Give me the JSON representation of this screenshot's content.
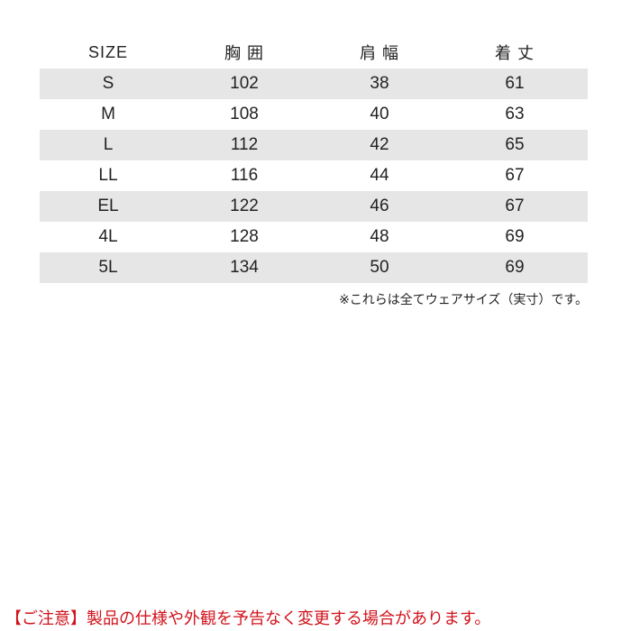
{
  "table": {
    "headers": [
      "SIZE",
      "胸 囲",
      "肩 幅",
      "着 丈"
    ],
    "rows": [
      [
        "S",
        "102",
        "38",
        "61"
      ],
      [
        "M",
        "108",
        "40",
        "63"
      ],
      [
        "L",
        "112",
        "42",
        "65"
      ],
      [
        "LL",
        "116",
        "44",
        "67"
      ],
      [
        "EL",
        "122",
        "46",
        "67"
      ],
      [
        "4L",
        "128",
        "48",
        "69"
      ],
      [
        "5L",
        "134",
        "50",
        "69"
      ]
    ],
    "stripe_color": "#e6e6e6"
  },
  "note": "※これらは全てウェアサイズ（実寸）です。",
  "caution": "【ご注意】製品の仕様や外観を予告なく変更する場合があります。",
  "caution_color": "#d0121b"
}
